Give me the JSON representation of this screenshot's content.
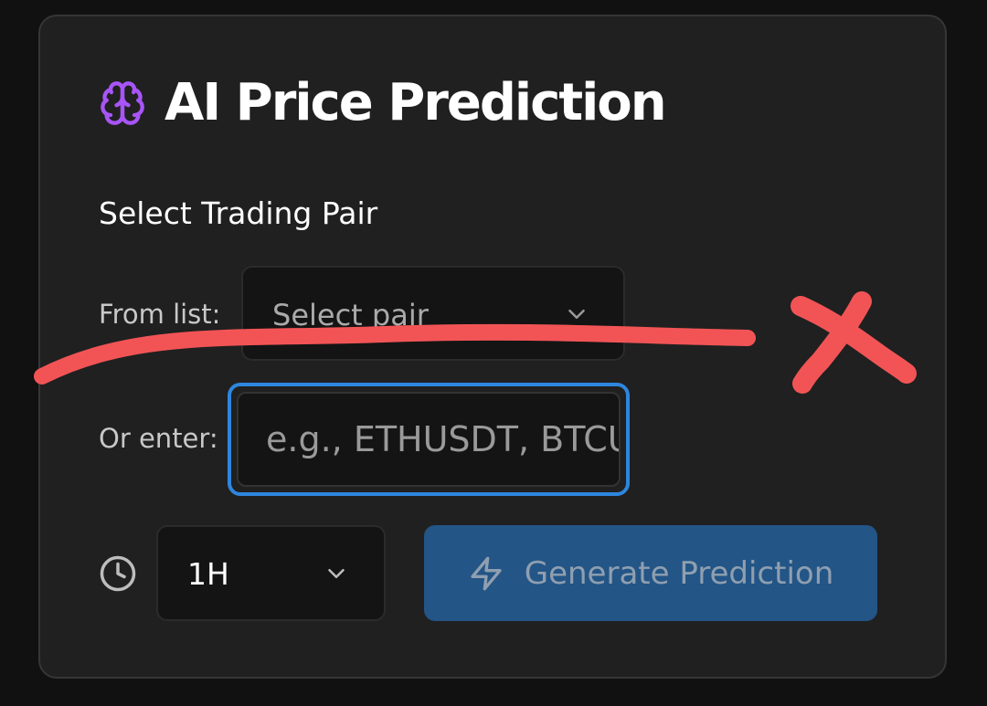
{
  "header": {
    "title": "AI Price Prediction",
    "icon": "brain-icon",
    "icon_color": "#a855f7"
  },
  "trading_pair": {
    "section_label": "Select Trading Pair",
    "from_list_label": "From list:",
    "select_value": "Select pair",
    "or_enter_label": "Or enter:",
    "input_placeholder": "e.g., ETHUSDT, BTCUSDT",
    "input_value": ""
  },
  "controls": {
    "timeframe_icon": "clock-icon",
    "timeframe_value": "1H",
    "generate_label": "Generate Prediction",
    "generate_icon": "lightning-icon",
    "generate_color": "#235586"
  },
  "annotation": {
    "color": "#f25456",
    "marks": [
      "strike-line",
      "cross-mark"
    ]
  },
  "theme": {
    "background": "#111111",
    "card": "#202020",
    "focus_ring": "#2e86de"
  }
}
